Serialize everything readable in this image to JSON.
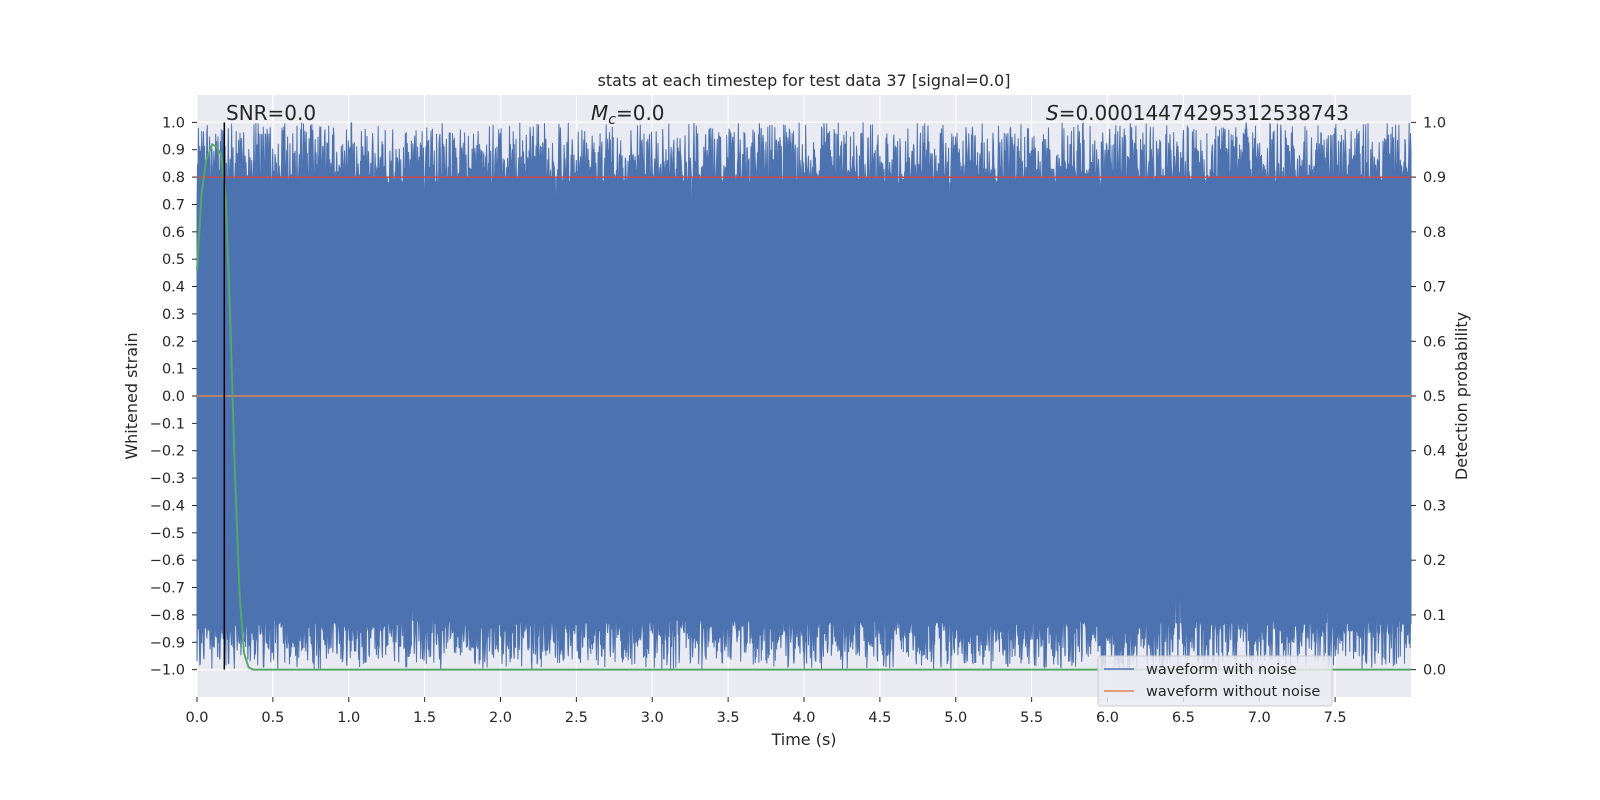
{
  "chart_data": {
    "type": "line",
    "title": "stats at each timestep for test data 37 [signal=0.0]",
    "xlabel": "Time (s)",
    "ylabel_left": "Whitened strain",
    "ylabel_right": "Detection probability",
    "xlim": [
      0.0,
      8.0
    ],
    "ylim_left": [
      -1.1,
      1.1
    ],
    "ylim_right": [
      -0.05,
      1.05
    ],
    "x_ticks": [
      "0.0",
      "0.5",
      "1.0",
      "1.5",
      "2.0",
      "2.5",
      "3.0",
      "3.5",
      "4.0",
      "4.5",
      "5.0",
      "5.5",
      "6.0",
      "6.5",
      "7.0",
      "7.5"
    ],
    "y_left_ticks": [
      "1.0",
      "0.9",
      "0.8",
      "0.7",
      "0.6",
      "0.5",
      "0.4",
      "0.3",
      "0.2",
      "0.1",
      "0.0",
      "−0.1",
      "−0.2",
      "−0.3",
      "−0.4",
      "−0.5",
      "−0.6",
      "−0.7",
      "−0.8",
      "−0.9",
      "−1.0"
    ],
    "y_right_ticks": [
      "1.0",
      "0.9",
      "0.8",
      "0.7",
      "0.6",
      "0.5",
      "0.4",
      "0.3",
      "0.2",
      "0.1",
      "0.0"
    ],
    "annotations": {
      "snr": "SNR=0.0",
      "mc_symbol": "M",
      "mc_sub": "c",
      "mc_value": "=0.0",
      "s_symbol": "S",
      "s_value": "=0.00014474295312538743"
    },
    "legend": {
      "placement": "lower-right",
      "entries": [
        "waveform with noise",
        "waveform without noise"
      ]
    },
    "series": [
      {
        "name": "waveform with noise",
        "axis": "left",
        "color": "#4c72b0",
        "description": "dense whitened noise spanning roughly -1.0 to 1.0"
      },
      {
        "name": "waveform without noise",
        "axis": "left",
        "color": "#dd8452",
        "y": 0.0
      },
      {
        "name": "detection probability",
        "axis": "right",
        "color": "#55a868",
        "x": [
          0.0,
          0.03,
          0.06,
          0.1,
          0.13,
          0.16,
          0.19,
          0.22,
          0.25,
          0.28,
          0.31,
          0.34,
          0.37,
          0.5,
          8.0
        ],
        "y": [
          0.73,
          0.87,
          0.93,
          0.96,
          0.955,
          0.94,
          0.86,
          0.63,
          0.36,
          0.14,
          0.03,
          0.004,
          0.0,
          0.0,
          0.0
        ]
      },
      {
        "name": "threshold",
        "axis": "right",
        "color": "#c44e52",
        "y": 0.9
      }
    ],
    "vline_x": 0.18
  },
  "colors": {
    "axes_bg": "#eaeaf2",
    "grid": "#ffffff",
    "noise": "#4c72b0",
    "clean": "#dd8452",
    "prob": "#55a868",
    "threshold": "#c44e52",
    "vline": "#000000"
  }
}
